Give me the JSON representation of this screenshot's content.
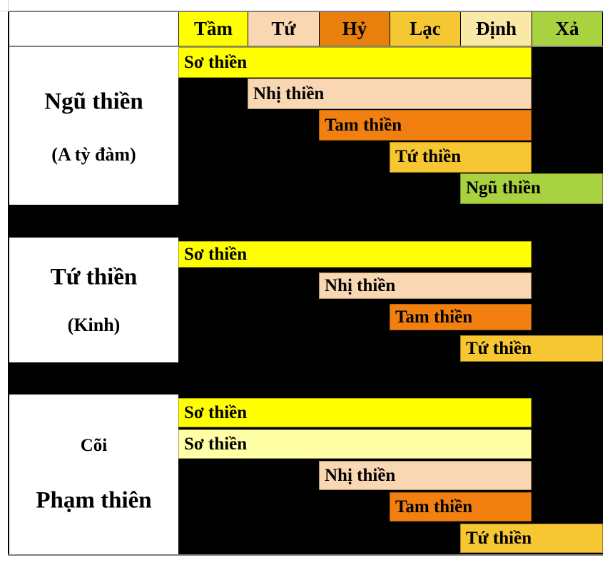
{
  "header": {
    "columns": [
      {
        "key": "tam",
        "label": "Tầm",
        "color": "#FFFF00"
      },
      {
        "key": "tu",
        "label": "Tứ",
        "color": "#F9D7B2"
      },
      {
        "key": "hy",
        "label": "Hỷ",
        "color": "#E8800D"
      },
      {
        "key": "lac",
        "label": "Lạc",
        "color": "#F5C733"
      },
      {
        "key": "dinh",
        "label": "Định",
        "color": "#F9E8A6"
      },
      {
        "key": "xa",
        "label": "Xả",
        "color": "#A8D23F"
      }
    ]
  },
  "sections": [
    {
      "key": "ngu-thien-a-ty-dam",
      "title": "Ngũ thiền",
      "subtitle": "(A tỳ đàm)",
      "rows": [
        {
          "key": "so-thien",
          "label": "Sơ thiền",
          "start": 0,
          "end": 5,
          "color": "#FFFF00"
        },
        {
          "key": "nhi-thien",
          "label": "Nhị thiền",
          "start": 1,
          "end": 5,
          "color": "#F9D7B2"
        },
        {
          "key": "tam-thien",
          "label": "Tam thiền",
          "start": 2,
          "end": 5,
          "color": "#F28011"
        },
        {
          "key": "tu-thien",
          "label": "Tứ thiền",
          "start": 3,
          "end": 5,
          "color": "#F7C733"
        },
        {
          "key": "ngu-thien",
          "label": "Ngũ thiền",
          "start": 4,
          "end": 6,
          "color": "#A8D23F"
        }
      ]
    },
    {
      "key": "tu-thien-kinh",
      "title": "Tứ thiền",
      "subtitle": "(Kinh)",
      "rows": [
        {
          "key": "so-thien",
          "label": "Sơ thiền",
          "start": 0,
          "end": 5,
          "color": "#FFFF00"
        },
        {
          "key": "nhi-thien",
          "label": "Nhị thiền",
          "start": 2,
          "end": 5,
          "color": "#F9D7B2"
        },
        {
          "key": "tam-thien",
          "label": "Tam thiền",
          "start": 3,
          "end": 5,
          "color": "#F28011"
        },
        {
          "key": "tu-thien",
          "label": "Tứ thiền",
          "start": 4,
          "end": 6,
          "color": "#F7C733"
        }
      ]
    },
    {
      "key": "coi-pham-thien",
      "title": "Cõi",
      "subtitle": "Phạm thiên",
      "rows": [
        {
          "key": "so-thien",
          "label": "Sơ thiền",
          "start": 0,
          "end": 5,
          "color": "#FFFF00"
        },
        {
          "key": "so-thien-2",
          "label": "Sơ thiền",
          "start": 0,
          "end": 5,
          "color": "#FFFFA6"
        },
        {
          "key": "nhi-thien",
          "label": "Nhị thiền",
          "start": 2,
          "end": 5,
          "color": "#F9D7B2"
        },
        {
          "key": "tam-thien",
          "label": "Tam thiền",
          "start": 3,
          "end": 5,
          "color": "#F28011"
        },
        {
          "key": "tu-thien",
          "label": "Tứ thiền",
          "start": 4,
          "end": 6,
          "color": "#F7C733"
        }
      ]
    }
  ],
  "colors": {
    "page_background": "#FFFFFF",
    "grid_background": "#000000",
    "outer_border": "#808080",
    "edge_artifact": "#CCCCCC"
  }
}
